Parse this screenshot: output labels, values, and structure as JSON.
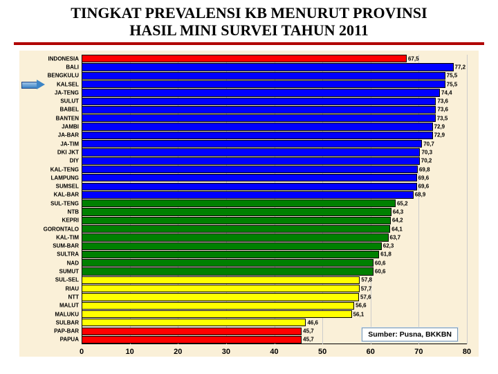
{
  "title": {
    "line1": "TINGKAT PREVALENSI KB MENURUT PROVINSI",
    "line2": "HASIL MINI SURVEI TAHUN 2011",
    "fontsize": 22,
    "color": "#000000",
    "rule_color": "#b00000"
  },
  "chart": {
    "type": "bar-horizontal",
    "background_color": "#faf0d8",
    "grid_color": "#cccccc",
    "axis_color": "#000000",
    "x": {
      "min": 0,
      "max": 80,
      "tick_step": 10,
      "ticks": [
        0,
        10,
        20,
        30,
        40,
        50,
        60,
        70,
        80
      ],
      "tick_fontsize": 11
    },
    "label_fontsize": 8,
    "value_fontsize": 8,
    "bar_border_color": "#000000",
    "colors": {
      "red": "#ff0000",
      "blue": "#0000ff",
      "green": "#008000",
      "yellow": "#ffff00"
    },
    "bars": [
      {
        "label": "INDONESIA",
        "value": 67.5,
        "color": "red"
      },
      {
        "label": "BALI",
        "value": 77.2,
        "color": "blue"
      },
      {
        "label": "BENGKULU",
        "value": 75.5,
        "color": "blue"
      },
      {
        "label": "KALSEL",
        "value": 75.5,
        "color": "blue"
      },
      {
        "label": "JA-TENG",
        "value": 74.4,
        "color": "blue"
      },
      {
        "label": "SULUT",
        "value": 73.6,
        "color": "blue"
      },
      {
        "label": "BABEL",
        "value": 73.6,
        "color": "blue"
      },
      {
        "label": "BANTEN",
        "value": 73.5,
        "color": "blue"
      },
      {
        "label": "JAMBI",
        "value": 72.9,
        "color": "blue"
      },
      {
        "label": "JA-BAR",
        "value": 72.9,
        "color": "blue"
      },
      {
        "label": "JA-TIM",
        "value": 70.7,
        "color": "blue"
      },
      {
        "label": "DKI JKT",
        "value": 70.3,
        "color": "blue"
      },
      {
        "label": "DIY",
        "value": 70.2,
        "color": "blue"
      },
      {
        "label": "KAL-TENG",
        "value": 69.8,
        "color": "blue"
      },
      {
        "label": "LAMPUNG",
        "value": 69.6,
        "color": "blue"
      },
      {
        "label": "SUMSEL",
        "value": 69.6,
        "color": "blue"
      },
      {
        "label": "KAL-BAR",
        "value": 68.9,
        "color": "blue"
      },
      {
        "label": "SUL-TENG",
        "value": 65.2,
        "color": "green"
      },
      {
        "label": "NTB",
        "value": 64.3,
        "color": "green"
      },
      {
        "label": "KEPRI",
        "value": 64.2,
        "color": "green"
      },
      {
        "label": "GORONTALO",
        "value": 64.1,
        "color": "green"
      },
      {
        "label": "KAL-TIM",
        "value": 63.7,
        "color": "green"
      },
      {
        "label": "SUM-BAR",
        "value": 62.3,
        "color": "green"
      },
      {
        "label": "SULTRA",
        "value": 61.8,
        "color": "green"
      },
      {
        "label": "NAD",
        "value": 60.6,
        "color": "green"
      },
      {
        "label": "SUMUT",
        "value": 60.6,
        "color": "green"
      },
      {
        "label": "SUL-SEL",
        "value": 57.8,
        "color": "yellow"
      },
      {
        "label": "RIAU",
        "value": 57.7,
        "color": "yellow"
      },
      {
        "label": "NTT",
        "value": 57.6,
        "color": "yellow"
      },
      {
        "label": "MALUT",
        "value": 56.6,
        "color": "yellow"
      },
      {
        "label": "MALUKU",
        "value": 56.1,
        "color": "yellow"
      },
      {
        "label": "SULBAR",
        "value": 46.6,
        "color": "yellow"
      },
      {
        "label": "PAP-BAR",
        "value": 45.7,
        "color": "red"
      },
      {
        "label": "PAPUA",
        "value": 45.7,
        "color": "red"
      }
    ],
    "arrow_at_index": 3
  },
  "source": {
    "text": "Sumber: Pusna, BKKBN",
    "fontsize": 10.5,
    "bg": "#ffffff",
    "border": "#7a98b0"
  }
}
